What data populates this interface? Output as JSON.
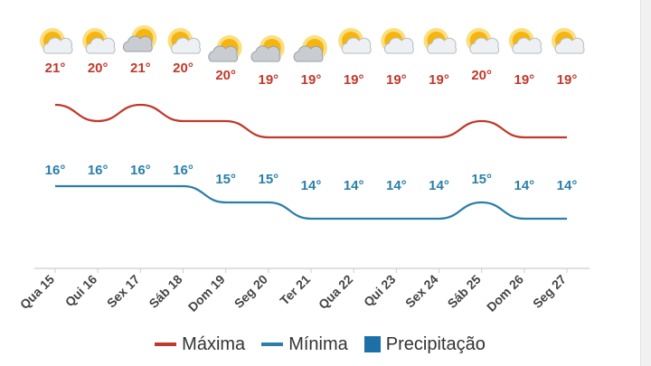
{
  "chart_data": {
    "type": "line",
    "categories": [
      "Qua 15",
      "Qui 16",
      "Sex 17",
      "Sáb 18",
      "Dom 19",
      "Seg 20",
      "Ter 21",
      "Qua 22",
      "Qui 23",
      "Sex 24",
      "Sáb 25",
      "Dom 26",
      "Seg 27"
    ],
    "series": [
      {
        "name": "Máxima",
        "color": "#c0392b",
        "values": [
          21,
          20,
          21,
          20,
          20,
          19,
          19,
          19,
          19,
          19,
          20,
          19,
          19
        ],
        "labels": [
          "21°",
          "20°",
          "21°",
          "20°",
          "20°",
          "19°",
          "19°",
          "19°",
          "19°",
          "19°",
          "20°",
          "19°",
          "19°"
        ]
      },
      {
        "name": "Mínima",
        "color": "#2a7fa8",
        "values": [
          16,
          16,
          16,
          16,
          15,
          15,
          14,
          14,
          14,
          14,
          15,
          14,
          14
        ],
        "labels": [
          "16°",
          "16°",
          "16°",
          "16°",
          "15°",
          "15°",
          "14°",
          "14°",
          "14°",
          "14°",
          "15°",
          "14°",
          "14°"
        ]
      }
    ],
    "weather_icons": [
      "partly-cloudy-icon",
      "partly-cloudy-icon",
      "cloudy-icon",
      "partly-cloudy-icon",
      "cloudy-icon",
      "cloudy-icon",
      "cloudy-icon",
      "partly-cloudy-icon",
      "partly-cloudy-icon",
      "partly-cloudy-icon",
      "partly-cloudy-icon",
      "partly-cloudy-icon",
      "partly-cloudy-icon"
    ],
    "legend": [
      {
        "label": "Máxima",
        "color": "#c0392b",
        "shape": "line"
      },
      {
        "label": "Mínima",
        "color": "#2a7fa8",
        "shape": "line"
      },
      {
        "label": "Precipitação",
        "color": "#1d6fa8",
        "shape": "box"
      }
    ],
    "grid": false,
    "legend_position": "bottom"
  }
}
